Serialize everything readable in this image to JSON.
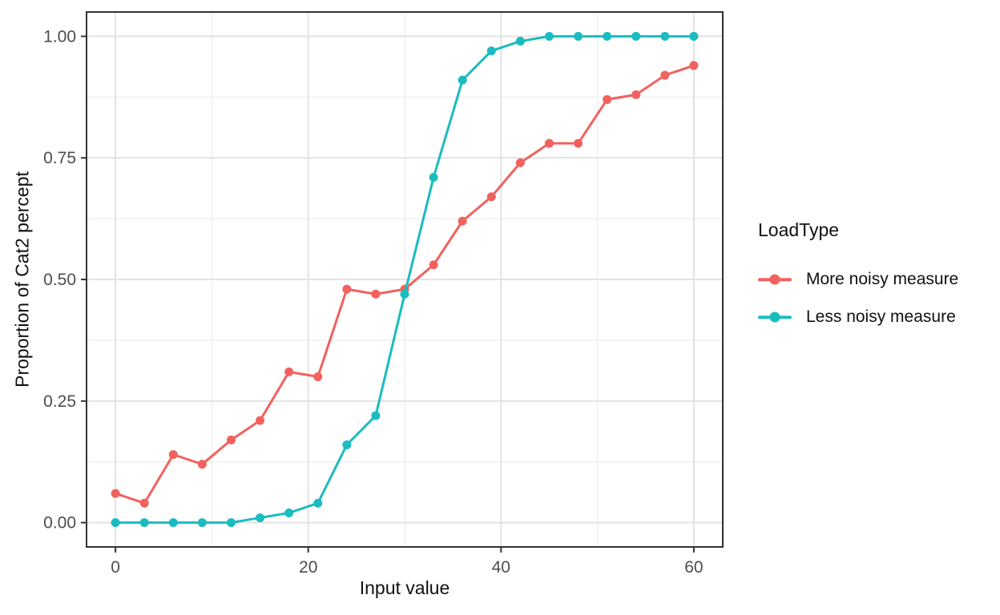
{
  "figure": {
    "background": "#FFFFFF"
  },
  "chart_data": {
    "type": "line",
    "xlabel": "Input value",
    "ylabel": "Proportion of Cat2 percept",
    "legend_title": "LoadType",
    "legend_position": "right",
    "grid": true,
    "x": [
      0,
      3,
      6,
      9,
      12,
      15,
      18,
      21,
      24,
      27,
      30,
      33,
      36,
      39,
      42,
      45,
      48,
      51,
      54,
      57,
      60
    ],
    "series": [
      {
        "name": "More noisy measure",
        "color": "#F2615E",
        "values": [
          0.06,
          0.04,
          0.14,
          0.12,
          0.17,
          0.21,
          0.31,
          0.3,
          0.48,
          0.47,
          0.48,
          0.53,
          0.62,
          0.67,
          0.74,
          0.78,
          0.78,
          0.87,
          0.88,
          0.92,
          0.94
        ]
      },
      {
        "name": "Less noisy measure",
        "color": "#1BBCBF",
        "values": [
          0.0,
          0.0,
          0.0,
          0.0,
          0.0,
          0.01,
          0.02,
          0.04,
          0.16,
          0.22,
          0.47,
          0.71,
          0.91,
          0.97,
          0.99,
          1.0,
          1.0,
          1.0,
          1.0,
          1.0,
          1.0
        ]
      }
    ],
    "xlim": [
      -3,
      63
    ],
    "ylim": [
      -0.05,
      1.05
    ],
    "x_ticks": {
      "values": [
        0,
        20,
        40,
        60
      ],
      "labels": [
        "0",
        "20",
        "40",
        "60"
      ],
      "minor": [
        10,
        30,
        50
      ]
    },
    "y_ticks": {
      "values": [
        0,
        0.25,
        0.5,
        0.75,
        1
      ],
      "labels": [
        "0.00",
        "0.25",
        "0.50",
        "0.75",
        "1.00"
      ],
      "minor": [
        0.125,
        0.375,
        0.625,
        0.875
      ]
    },
    "theme": {
      "panel_border": "#333333",
      "grid_major": "#E3E3E3",
      "grid_minor": "#F0F0F0",
      "tick_color": "#333333",
      "tick_label_color": "#4D4D4D",
      "title_color": "#111111",
      "point_radius": 5.5,
      "line_width": 3
    }
  }
}
